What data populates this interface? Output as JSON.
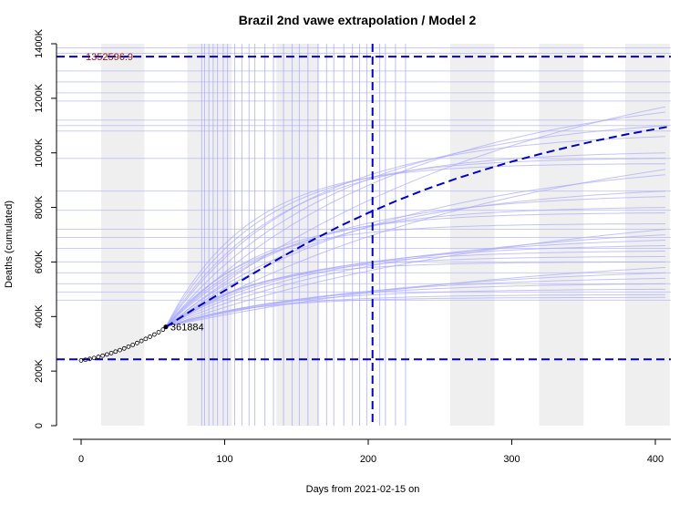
{
  "chart_data": {
    "type": "line",
    "title": "Brazil 2nd vawe extrapolation / Model 2",
    "xlabel": "Days from 2021-02-15 on",
    "ylabel": "Deaths (cumulated)",
    "xlim": [
      0,
      410
    ],
    "ylim": [
      0,
      1400000
    ],
    "x_ticks": [
      0,
      100,
      200,
      300,
      400
    ],
    "x_tick_labels": [
      "0",
      "100",
      "200",
      "300",
      "400"
    ],
    "y_ticks": [
      0,
      200000,
      400000,
      600000,
      800000,
      1000000,
      1200000,
      1400000
    ],
    "y_tick_labels": [
      "0",
      "200K",
      "400K",
      "600K",
      "800K",
      "1000K",
      "1200K",
      "1400K"
    ],
    "grid": false,
    "month_bands": [
      [
        14,
        44
      ],
      [
        74,
        105
      ],
      [
        136,
        166
      ],
      [
        257,
        288
      ],
      [
        319,
        350
      ],
      [
        379,
        410
      ]
    ],
    "observed": {
      "x": [
        0,
        3,
        6,
        9,
        12,
        15,
        18,
        21,
        24,
        27,
        30,
        33,
        36,
        39,
        42,
        45,
        48,
        51,
        54,
        57,
        59
      ],
      "y": [
        239000,
        241500,
        244500,
        248000,
        252000,
        256500,
        261000,
        266000,
        271500,
        277000,
        283000,
        289500,
        296000,
        303000,
        310500,
        318000,
        326000,
        334000,
        342500,
        352000,
        361884
      ]
    },
    "last_point": {
      "x": 59,
      "y": 361884,
      "label": "361884"
    },
    "main_projection": {
      "x": [
        59,
        80,
        100,
        120,
        140,
        160,
        180,
        200,
        220,
        240,
        260,
        280,
        300,
        320,
        340,
        360,
        380,
        408
      ],
      "y": [
        361884,
        432000,
        495000,
        558000,
        619000,
        677000,
        731000,
        780000,
        825000,
        866000,
        903000,
        937000,
        968000,
        996000,
        1022000,
        1046000,
        1068000,
        1095000
      ]
    },
    "ensemble_finals": [
      1170000,
      1150000,
      1100000,
      1060000,
      1000000,
      980000,
      960000,
      940000,
      920000,
      860000,
      840000,
      800000,
      780000,
      740000,
      720000,
      700000,
      680000,
      660000,
      640000,
      620000,
      600000,
      580000,
      560000,
      540000,
      520000,
      500000,
      480000,
      470000
    ],
    "ensemble_hlines": [
      1385000,
      1365000,
      1300000,
      1260000,
      1220000,
      1190000,
      1120000,
      1100000,
      1080000,
      980000,
      860000,
      790000,
      720000,
      690000,
      650000,
      600000,
      560000,
      520000,
      490000,
      460000
    ],
    "ensemble_vlines": [
      84,
      86,
      89,
      92,
      95,
      99,
      102,
      107,
      112,
      117,
      121,
      128,
      134,
      141,
      147,
      152,
      158,
      165,
      171,
      176,
      183,
      189,
      194,
      199,
      208,
      212,
      219,
      226
    ],
    "reference_lines": {
      "upper_h": 1352596.9,
      "upper_label": "1352596.9",
      "lower_h": 243000,
      "peak_v": 203
    },
    "colors": {
      "projection": "#0000cc",
      "ensemble": "#aaaaff",
      "band": "#efefef",
      "upper_label": "#8b1a1a",
      "observed": "#000000"
    }
  }
}
